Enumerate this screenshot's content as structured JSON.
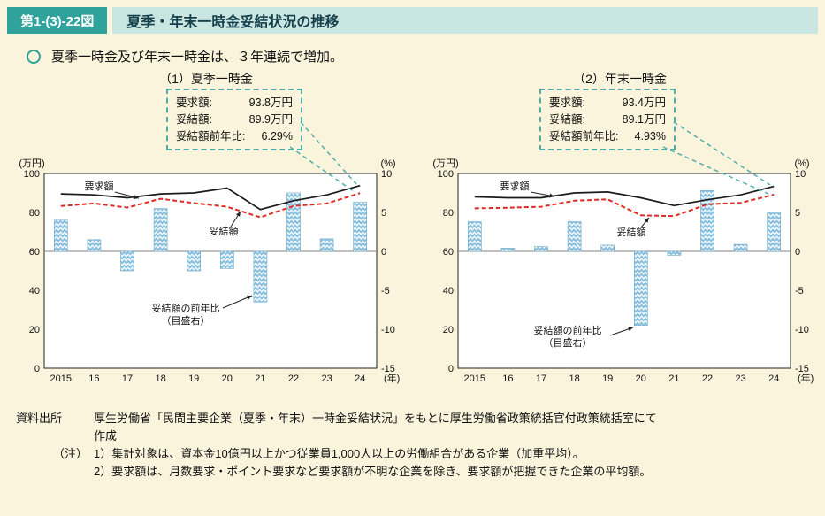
{
  "header": {
    "figure_label": "第1-(3)-22図",
    "title": "夏季・年末一時金妥結状況の推移"
  },
  "summary": {
    "text": "夏季一時金及び年末一時金は、３年連続で増加。"
  },
  "colors": {
    "teal": "#2FA29B",
    "teal_light": "#C9E6E3",
    "callout_border": "#53AEA8",
    "bar_fill": "#8CC2DF",
    "request_line": "#1A1A1A",
    "settlement_line": "#DD2C25",
    "background": "#FBF4DC"
  },
  "panels": [
    {
      "title": "（1）夏季一時金",
      "callout": {
        "rows": [
          {
            "label": "要求額:",
            "value": "93.8万円"
          },
          {
            "label": "妥結額:",
            "value": "89.9万円"
          },
          {
            "label": "妥結額前年比:",
            "value": "6.29%"
          }
        ]
      }
    },
    {
      "title": "（2）年末一時金",
      "callout": {
        "rows": [
          {
            "label": "要求額:",
            "value": "93.4万円"
          },
          {
            "label": "妥結額:",
            "value": "89.1万円"
          },
          {
            "label": "妥結額前年比:",
            "value": "4.93%"
          }
        ]
      }
    }
  ],
  "chart_data": [
    {
      "type": "combo-line-bar",
      "title": "（1）夏季一時金",
      "categories": [
        "2015",
        "16",
        "17",
        "18",
        "19",
        "20",
        "21",
        "22",
        "23",
        "24"
      ],
      "x_unit": "(年)",
      "left_axis": {
        "unit": "(万円)",
        "ticks": [
          0,
          20,
          40,
          60,
          80,
          100
        ],
        "range": [
          0,
          100
        ]
      },
      "right_axis": {
        "unit": "(%)",
        "ticks": [
          10,
          5,
          0,
          -5,
          -10,
          -15
        ],
        "range": [
          -15,
          10
        ]
      },
      "series": [
        {
          "name": "要求額",
          "type": "line",
          "axis": "left",
          "style": "solid",
          "color": "#1A1A1A",
          "values": [
            89.5,
            89.0,
            87.5,
            89.5,
            90.0,
            92.5,
            81.5,
            86.0,
            89.0,
            93.8
          ]
        },
        {
          "name": "妥結額",
          "type": "line",
          "axis": "left",
          "style": "dashed",
          "color": "#DD2C25",
          "values": [
            83.3,
            84.6,
            82.5,
            87.0,
            84.8,
            82.9,
            77.5,
            83.3,
            84.6,
            89.9
          ]
        },
        {
          "name": "妥結額の前年比（目盛右）",
          "type": "bar",
          "axis": "right",
          "color": "#8CC2DF",
          "values": [
            4.0,
            1.5,
            -2.5,
            5.5,
            -2.5,
            -2.2,
            -6.5,
            7.5,
            1.6,
            6.29
          ]
        }
      ],
      "annotations": {
        "request": "要求額",
        "settlement": "妥結額",
        "yoy_line1": "妥結額の前年比",
        "yoy_line2": "（目盛右）"
      },
      "legend_position": "none",
      "grid": false
    },
    {
      "type": "combo-line-bar",
      "title": "（2）年末一時金",
      "categories": [
        "2015",
        "16",
        "17",
        "18",
        "19",
        "20",
        "21",
        "22",
        "23",
        "24"
      ],
      "x_unit": "(年)",
      "left_axis": {
        "unit": "(万円)",
        "ticks": [
          0,
          20,
          40,
          60,
          80,
          100
        ],
        "range": [
          0,
          100
        ]
      },
      "right_axis": {
        "unit": "(%)",
        "ticks": [
          10,
          5,
          0,
          -5,
          -10,
          -15
        ],
        "range": [
          -15,
          10
        ]
      },
      "series": [
        {
          "name": "要求額",
          "type": "line",
          "axis": "left",
          "style": "solid",
          "color": "#1A1A1A",
          "values": [
            88.0,
            87.5,
            87.5,
            90.0,
            90.5,
            87.5,
            83.5,
            86.5,
            89.0,
            93.4
          ]
        },
        {
          "name": "妥結額",
          "type": "line",
          "axis": "left",
          "style": "dashed",
          "color": "#DD2C25",
          "values": [
            82.1,
            82.4,
            82.9,
            86.0,
            86.7,
            78.5,
            78.1,
            84.2,
            84.9,
            89.1
          ]
        },
        {
          "name": "妥結額の前年比（目盛右）",
          "type": "bar",
          "axis": "right",
          "color": "#8CC2DF",
          "values": [
            3.8,
            0.4,
            0.6,
            3.8,
            0.8,
            -9.5,
            -0.5,
            7.8,
            0.9,
            4.93
          ]
        }
      ],
      "annotations": {
        "request": "要求額",
        "settlement": "妥結額",
        "yoy_line1": "妥結額の前年比",
        "yoy_line2": "（目盛右）"
      },
      "legend_position": "none",
      "grid": false
    }
  ],
  "footer": {
    "source_label": "資料出所",
    "source_text": "厚生労働省「民間主要企業（夏季・年末）一時金妥結状況」をもとに厚生労働省政策統括官付政策統括室にて",
    "source_text_cont": "作成",
    "note_label": "（注）",
    "notes": [
      "1）集計対象は、資本金10億円以上かつ従業員1,000人以上の労働組合がある企業（加重平均）。",
      "2）要求額は、月数要求・ポイント要求など要求額が不明な企業を除き、要求額が把握できた企業の平均額。"
    ]
  }
}
